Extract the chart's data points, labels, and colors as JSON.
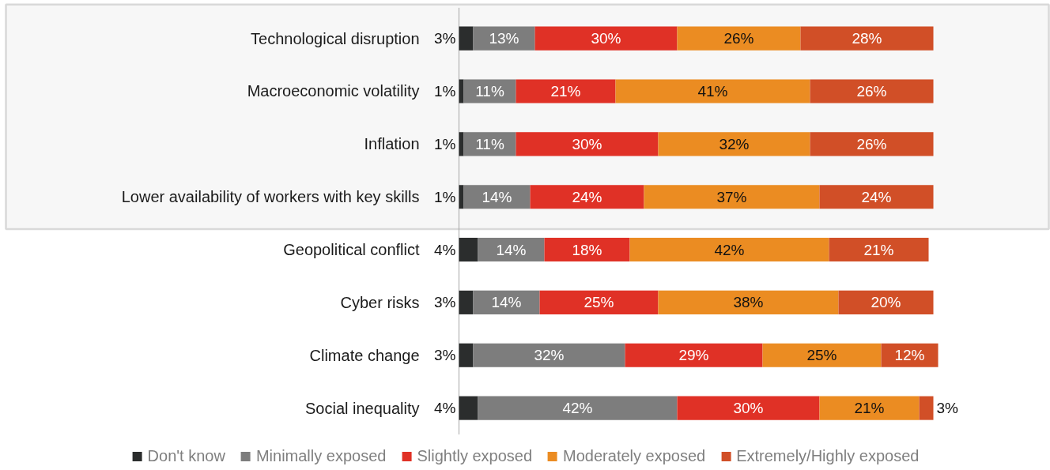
{
  "chart_data": {
    "type": "bar",
    "orientation": "horizontal",
    "stacked": true,
    "categories": [
      "Technological disruption",
      "Macroeconomic volatility",
      "Inflation",
      "Lower availability of workers with key skills",
      "Geopolitical conflict",
      "Cyber risks",
      "Climate change",
      "Social inequality"
    ],
    "series": [
      {
        "name": "Don't know",
        "color": "#2b2d2d",
        "values": [
          3,
          1,
          1,
          1,
          4,
          3,
          3,
          4
        ],
        "value_labels": [
          "3%",
          "1%",
          "1%",
          "1%",
          "4%",
          "3%",
          "3%",
          "4%"
        ]
      },
      {
        "name": "Minimally exposed",
        "color": "#7d7d7d",
        "values": [
          13,
          11,
          11,
          14,
          14,
          14,
          32,
          42
        ],
        "value_labels": [
          "13%",
          "11%",
          "11%",
          "14%",
          "14%",
          "14%",
          "32%",
          "42%"
        ]
      },
      {
        "name": "Slightly exposed",
        "color": "#e03126",
        "values": [
          30,
          21,
          30,
          24,
          18,
          25,
          29,
          30
        ],
        "value_labels": [
          "30%",
          "21%",
          "30%",
          "24%",
          "18%",
          "25%",
          "29%",
          "30%"
        ]
      },
      {
        "name": "Moderately exposed",
        "color": "#eb8c22",
        "values": [
          26,
          41,
          32,
          37,
          42,
          38,
          25,
          21
        ],
        "value_labels": [
          "26%",
          "41%",
          "32%",
          "37%",
          "42%",
          "38%",
          "25%",
          "21%"
        ]
      },
      {
        "name": "Extremely/Highly exposed",
        "color": "#d14f27",
        "values": [
          28,
          26,
          26,
          24,
          21,
          20,
          12,
          3
        ],
        "value_labels": [
          "28%",
          "26%",
          "26%",
          "24%",
          "21%",
          "20%",
          "12%",
          "3%"
        ]
      }
    ],
    "legend": "bottom",
    "bands": [
      {
        "axis": "y",
        "from": "Technological disruption",
        "to": "Lower availability of workers with key skills",
        "color": "#d9d9d9"
      }
    ]
  }
}
